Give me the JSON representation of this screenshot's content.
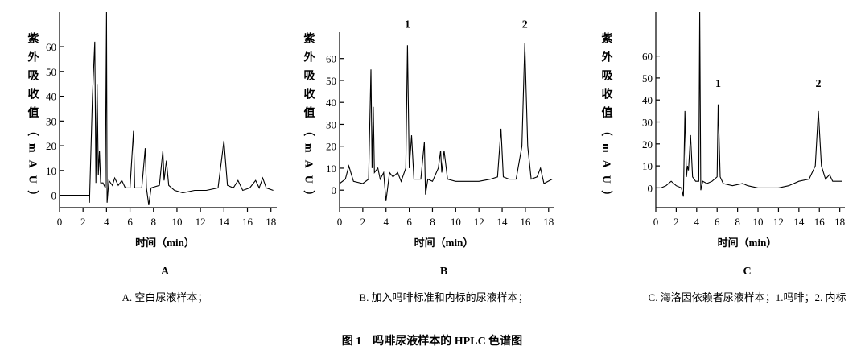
{
  "figure_title": "图 1　吗啡尿液样本的 HPLC 色谱图",
  "chart_data": [
    {
      "type": "line",
      "panel": "A",
      "caption": "A. 空白尿液样本；",
      "ylabel": "紫外吸收值（mAU）",
      "xlabel": "时间（min）",
      "xlim": [
        0,
        18.5
      ],
      "ylim": [
        -5,
        74
      ],
      "xticks": [
        0,
        2,
        4,
        6,
        8,
        10,
        12,
        14,
        16,
        18
      ],
      "yticks": [
        0,
        10,
        20,
        30,
        40,
        50,
        60
      ],
      "color": "#000000",
      "annotations": [],
      "x": [
        0,
        2.5,
        2.55,
        2.8,
        3.0,
        3.1,
        3.2,
        3.3,
        3.4,
        3.5,
        3.7,
        3.9,
        4.0,
        4.05,
        4.2,
        4.5,
        4.7,
        5.0,
        5.3,
        5.6,
        6.0,
        6.3,
        6.4,
        7.0,
        7.3,
        7.4,
        7.6,
        7.8,
        8.5,
        8.8,
        8.9,
        9.1,
        9.3,
        9.8,
        10.5,
        11.5,
        12.5,
        13.5,
        14.0,
        14.3,
        14.8,
        15.2,
        15.6,
        16.2,
        16.7,
        17.0,
        17.3,
        17.6,
        18.2
      ],
      "values": [
        0,
        0,
        -3,
        40,
        62,
        5,
        45,
        8,
        18,
        5,
        5,
        3,
        74,
        -3,
        6,
        4,
        7,
        4,
        6,
        3,
        3,
        26,
        3,
        3,
        19,
        3,
        -4,
        3,
        4,
        18,
        6,
        14,
        4,
        2,
        1,
        2,
        2,
        3,
        22,
        4,
        3,
        6,
        2,
        3,
        6,
        3,
        7,
        3,
        2
      ]
    },
    {
      "type": "line",
      "panel": "B",
      "caption": "B. 加入吗啡标准和内标的尿液样本；",
      "ylabel": "紫外吸收值（mAU）",
      "xlabel": "时间（min）",
      "xlim": [
        0,
        18.5
      ],
      "ylim": [
        -8,
        72
      ],
      "xticks": [
        0,
        2,
        4,
        6,
        8,
        10,
        12,
        14,
        16,
        18
      ],
      "yticks": [
        0,
        10,
        20,
        30,
        40,
        50,
        60
      ],
      "color": "#000000",
      "annotations": [
        {
          "text": "1",
          "x": 5.85,
          "y": 74
        },
        {
          "text": "2",
          "x": 15.95,
          "y": 74
        }
      ],
      "x": [
        0,
        0.5,
        0.8,
        1.2,
        2.0,
        2.5,
        2.7,
        2.8,
        2.9,
        3.0,
        3.3,
        3.5,
        3.8,
        4.0,
        4.3,
        4.6,
        5.0,
        5.3,
        5.7,
        5.85,
        6.0,
        6.2,
        6.4,
        7.0,
        7.3,
        7.4,
        7.6,
        8.0,
        8.5,
        8.7,
        8.8,
        9.0,
        9.3,
        10,
        11,
        12,
        13,
        13.6,
        13.9,
        14.1,
        14.6,
        15.2,
        15.7,
        15.95,
        16.2,
        16.5,
        17.0,
        17.3,
        17.6,
        18.3
      ],
      "values": [
        3,
        5,
        11,
        4,
        3,
        5,
        55,
        10,
        38,
        8,
        10,
        5,
        8,
        -5,
        8,
        6,
        8,
        4,
        10,
        66,
        10,
        25,
        5,
        5,
        22,
        -2,
        5,
        4,
        10,
        18,
        8,
        18,
        5,
        4,
        4,
        4,
        5,
        6,
        28,
        6,
        5,
        5,
        20,
        67,
        20,
        5,
        6,
        10,
        3,
        5
      ]
    },
    {
      "type": "line",
      "panel": "C",
      "caption": "C. 海洛因依赖者尿液样本；1.吗啡；2. 内标",
      "ylabel": "紫外吸收值（mAU）",
      "xlabel": "时间（min）",
      "xlim": [
        0,
        18.5
      ],
      "ylim": [
        -9,
        80
      ],
      "xticks": [
        0,
        2,
        4,
        6,
        8,
        10,
        12,
        14,
        16,
        18
      ],
      "yticks": [
        0,
        10,
        20,
        30,
        40,
        50,
        60
      ],
      "color": "#000000",
      "annotations": [
        {
          "text": "1",
          "x": 6.1,
          "y": 46
        },
        {
          "text": "2",
          "x": 15.9,
          "y": 46
        }
      ],
      "x": [
        0,
        0.5,
        1.0,
        1.5,
        2.0,
        2.5,
        2.7,
        2.85,
        3.0,
        3.1,
        3.2,
        3.4,
        3.6,
        3.9,
        4.2,
        4.3,
        4.4,
        4.6,
        5.0,
        5.5,
        6.0,
        6.1,
        6.3,
        6.6,
        7.5,
        8.5,
        9,
        10,
        11,
        12,
        13,
        14,
        15,
        15.6,
        15.9,
        16.2,
        16.6,
        17.0,
        17.3,
        18.2
      ],
      "values": [
        0,
        0,
        1,
        3,
        1,
        0,
        -4,
        35,
        5,
        10,
        8,
        24,
        5,
        3,
        3,
        80,
        -1,
        3,
        2,
        3,
        5,
        38,
        5,
        2,
        1,
        2,
        1,
        0,
        0,
        0,
        1,
        3,
        4,
        10,
        35,
        10,
        4,
        6,
        3,
        3
      ]
    }
  ]
}
